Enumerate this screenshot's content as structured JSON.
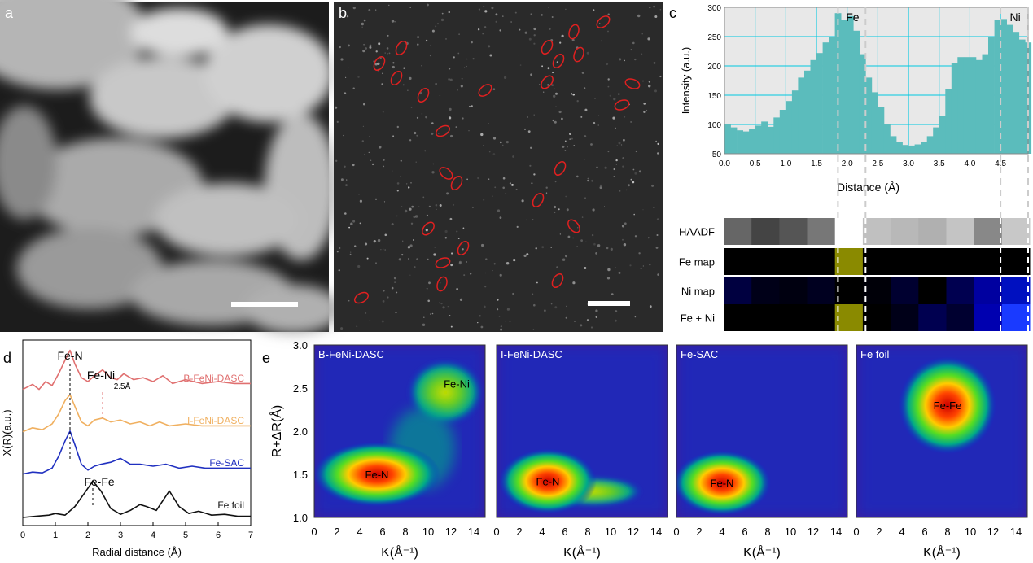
{
  "panel_labels": {
    "a": "a",
    "b": "b",
    "c": "c",
    "d": "d",
    "e": "e"
  },
  "chart_data": [
    {
      "id": "c-profile",
      "type": "bar",
      "ylabel": "Intensity (a.u.)",
      "xlabel": "Distance (Å)",
      "xlim": [
        0,
        4.95
      ],
      "ylim": [
        50,
        300
      ],
      "xticks": [
        "0.0",
        "0.5",
        "1.0",
        "1.5",
        "2.0",
        "2.5",
        "3.0",
        "3.5",
        "4.0",
        "4.5"
      ],
      "yticks": [
        "50",
        "100",
        "150",
        "200",
        "250",
        "300"
      ],
      "grid": true,
      "bar_color": "#5bbcbc",
      "bin_width": 0.1,
      "x": [
        0.05,
        0.15,
        0.25,
        0.35,
        0.45,
        0.55,
        0.65,
        0.75,
        0.85,
        0.95,
        1.05,
        1.15,
        1.25,
        1.35,
        1.45,
        1.55,
        1.65,
        1.75,
        1.85,
        1.95,
        2.05,
        2.15,
        2.25,
        2.35,
        2.45,
        2.55,
        2.65,
        2.75,
        2.85,
        2.95,
        3.05,
        3.15,
        3.25,
        3.35,
        3.45,
        3.55,
        3.65,
        3.75,
        3.85,
        3.95,
        4.05,
        4.15,
        4.25,
        4.35,
        4.45,
        4.55,
        4.65,
        4.75,
        4.85,
        4.95
      ],
      "values": [
        100,
        95,
        90,
        88,
        92,
        98,
        105,
        96,
        112,
        125,
        140,
        158,
        180,
        192,
        210,
        222,
        240,
        250,
        290,
        278,
        285,
        260,
        220,
        180,
        155,
        130,
        100,
        80,
        70,
        65,
        64,
        66,
        70,
        80,
        95,
        115,
        160,
        205,
        215,
        215,
        215,
        210,
        220,
        250,
        278,
        280,
        270,
        258,
        245,
        240
      ],
      "markers": [
        {
          "label": "Fe",
          "x": 1.85
        },
        {
          "label": "Ni",
          "x": 4.5
        }
      ],
      "dash_lines_x": [
        1.85,
        2.3,
        4.5,
        4.95
      ]
    },
    {
      "id": "d-exafs",
      "type": "line",
      "ylabel": "X(R)(a.u.)",
      "xlabel": "Radial distance (Å)",
      "xlim": [
        0,
        7
      ],
      "xticks": [
        "0",
        "1",
        "2",
        "3",
        "4",
        "5",
        "6",
        "7"
      ],
      "series": [
        {
          "name": "B-FeNi-DASC",
          "color": "#e07070",
          "offset": 3,
          "x": [
            0,
            0.3,
            0.5,
            0.7,
            0.9,
            1.1,
            1.3,
            1.45,
            1.6,
            1.8,
            2.0,
            2.2,
            2.45,
            2.7,
            2.9,
            3.1,
            3.4,
            3.7,
            4.0,
            4.3,
            4.6,
            5.0,
            5.5,
            6.0,
            6.5,
            7.0
          ],
          "y": [
            0.05,
            0.18,
            0.05,
            0.25,
            0.15,
            0.45,
            0.8,
            1.05,
            0.7,
            0.35,
            0.25,
            0.4,
            0.55,
            0.35,
            0.3,
            0.45,
            0.3,
            0.35,
            0.25,
            0.4,
            0.2,
            0.3,
            0.2,
            0.25,
            0.2,
            0.2
          ]
        },
        {
          "name": "I-FeNi-DASC",
          "color": "#f0b060",
          "offset": 2,
          "x": [
            0,
            0.3,
            0.6,
            0.9,
            1.1,
            1.3,
            1.45,
            1.6,
            1.8,
            2.0,
            2.2,
            2.45,
            2.7,
            3.0,
            3.3,
            3.6,
            3.9,
            4.2,
            4.5,
            5.0,
            5.5,
            6.0,
            6.5,
            7.0
          ],
          "y": [
            0.05,
            0.15,
            0.1,
            0.25,
            0.5,
            0.85,
            1.0,
            0.7,
            0.3,
            0.2,
            0.35,
            0.4,
            0.3,
            0.35,
            0.25,
            0.3,
            0.2,
            0.3,
            0.2,
            0.25,
            0.2,
            0.2,
            0.2,
            0.2
          ]
        },
        {
          "name": "Fe-SAC",
          "color": "#2030c0",
          "offset": 1,
          "x": [
            0,
            0.3,
            0.6,
            0.9,
            1.1,
            1.3,
            1.45,
            1.6,
            1.8,
            2.0,
            2.2,
            2.4,
            2.7,
            3.0,
            3.3,
            3.6,
            4.0,
            4.4,
            4.8,
            5.2,
            5.6,
            6.0,
            6.5,
            7.0
          ],
          "y": [
            0.05,
            0.1,
            0.08,
            0.2,
            0.5,
            0.9,
            1.15,
            0.8,
            0.3,
            0.15,
            0.25,
            0.3,
            0.35,
            0.45,
            0.3,
            0.3,
            0.25,
            0.3,
            0.2,
            0.25,
            0.2,
            0.2,
            0.2,
            0.2
          ]
        },
        {
          "name": "Fe foil",
          "color": "#111111",
          "offset": 0,
          "x": [
            0,
            0.4,
            0.8,
            1.0,
            1.3,
            1.6,
            1.9,
            2.15,
            2.4,
            2.7,
            3.0,
            3.3,
            3.6,
            3.8,
            4.1,
            4.5,
            4.8,
            5.1,
            5.4,
            5.8,
            6.2,
            6.6,
            7.0
          ],
          "y": [
            0.02,
            0.05,
            0.08,
            0.12,
            0.08,
            0.3,
            0.65,
            0.95,
            0.7,
            0.25,
            0.1,
            0.2,
            0.35,
            0.3,
            0.2,
            0.7,
            0.3,
            0.12,
            0.18,
            0.08,
            0.1,
            0.05,
            0.05
          ]
        }
      ],
      "annotations": [
        {
          "text": "Fe-N",
          "x": 1.45
        },
        {
          "text": "Fe-Ni",
          "x": 2.45
        },
        {
          "text": "2.5Å",
          "x": 2.5
        },
        {
          "text": "Fe-Fe",
          "x": 2.15
        }
      ]
    },
    {
      "id": "e-wt",
      "type": "heatmap",
      "ylabel": "R+ΔR(Å)",
      "xlabel": "K(Å⁻¹)",
      "xlim": [
        0,
        15
      ],
      "ylim": [
        1.0,
        3.0
      ],
      "xticks": [
        "0",
        "2",
        "4",
        "6",
        "8",
        "10",
        "12",
        "14"
      ],
      "yticks": [
        "1.0",
        "1.5",
        "2.0",
        "2.5",
        "3.0"
      ],
      "panels": [
        {
          "title": "B-FeNi-DASC",
          "peaks": [
            {
              "label": "Fe-N",
              "k": 5.5,
              "r": 1.5
            },
            {
              "label": "Fe-Ni",
              "k": 12.5,
              "r": 2.55
            }
          ]
        },
        {
          "title": "I-FeNi-DASC",
          "peaks": [
            {
              "label": "Fe-N",
              "k": 4.5,
              "r": 1.42
            }
          ]
        },
        {
          "title": "Fe-SAC",
          "peaks": [
            {
              "label": "Fe-N",
              "k": 4.0,
              "r": 1.4
            }
          ]
        },
        {
          "title": "Fe foil",
          "peaks": [
            {
              "label": "Fe-Fe",
              "k": 8.0,
              "r": 2.3
            }
          ]
        }
      ]
    }
  ],
  "mapping_rows": [
    {
      "label": "HAADF",
      "cells": [
        "#666666",
        "#444444",
        "#555555",
        "#777777",
        "#ffffff",
        "#c0c0c0",
        "#b8b8b8",
        "#b0b0b0",
        "#c4c4c4",
        "#888888",
        "#c8c8c8"
      ]
    },
    {
      "label": "Fe map",
      "cells": [
        "#000000",
        "#000000",
        "#000000",
        "#000000",
        "#8a8a00",
        "#000000",
        "#000000",
        "#000000",
        "#000000",
        "#000000",
        "#000000"
      ]
    },
    {
      "label": "Ni map",
      "cells": [
        "#000040",
        "#000018",
        "#000010",
        "#000020",
        "#000000",
        "#000008",
        "#000030",
        "#000000",
        "#000050",
        "#0000a0",
        "#0010c0"
      ]
    },
    {
      "label": "Fe + Ni",
      "cells": [
        "#000000",
        "#000000",
        "#000000",
        "#000000",
        "#8a8a00",
        "#000000",
        "#000018",
        "#000050",
        "#000030",
        "#0000b0",
        "#1a3aff"
      ]
    }
  ]
}
